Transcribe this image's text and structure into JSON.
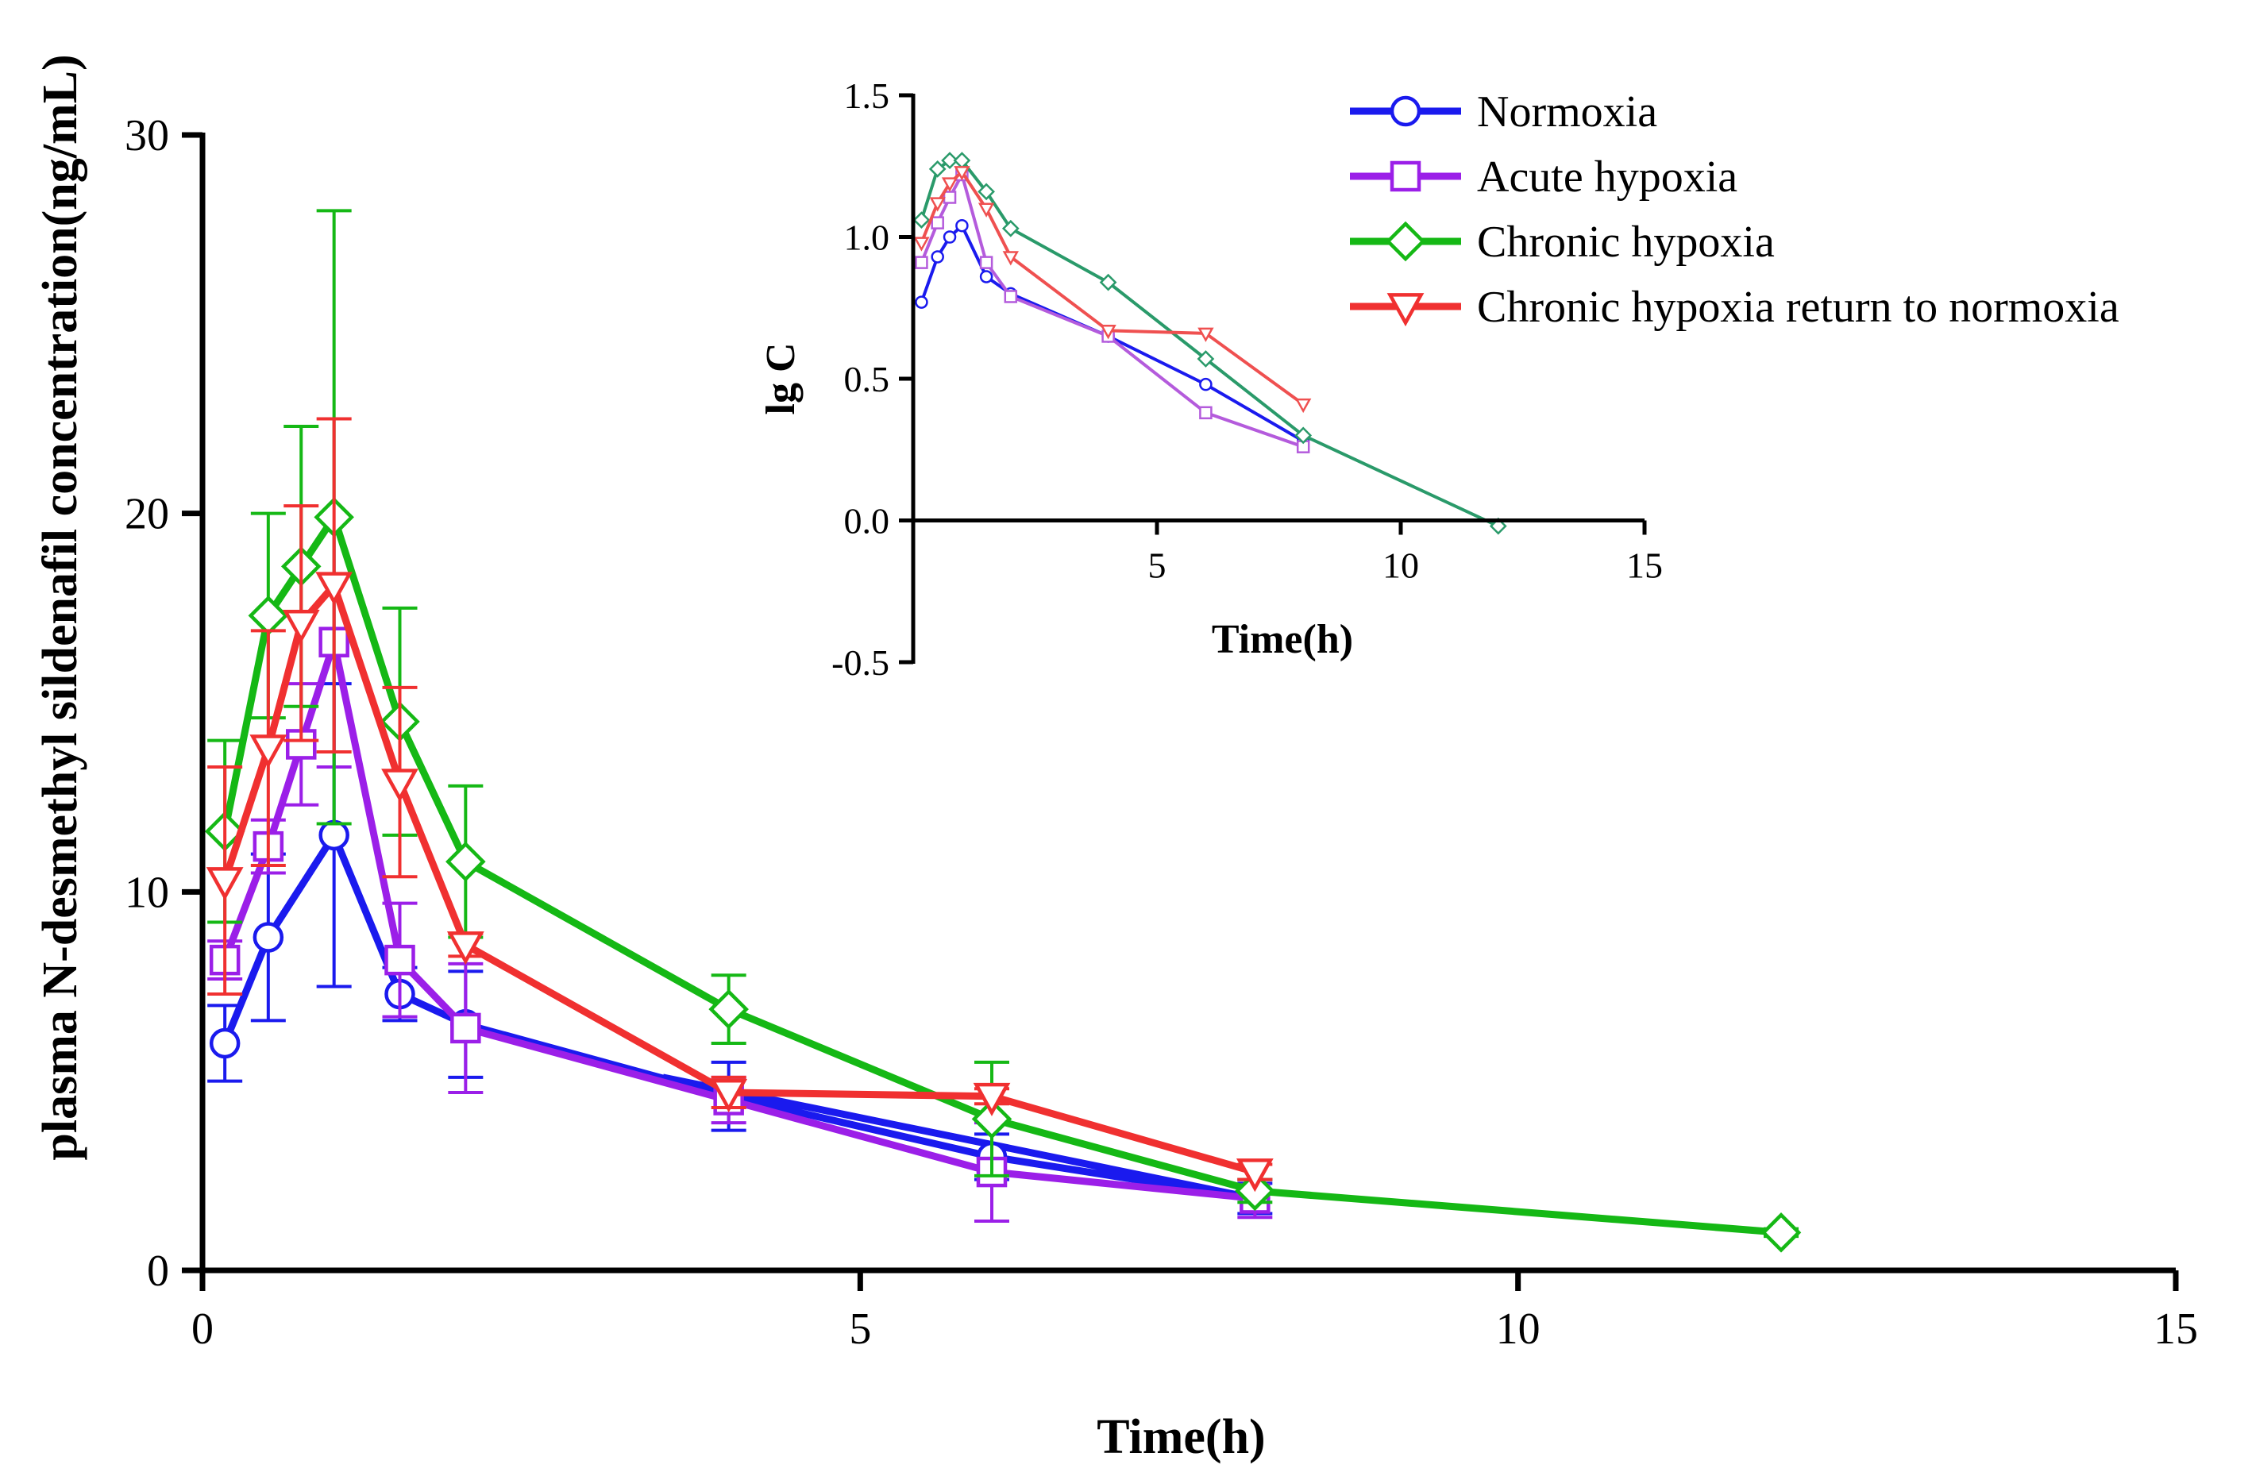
{
  "chart_data": [
    {
      "type": "line",
      "xlabel": "Time(h)",
      "ylabel": "plasma N-desmethyl sildenafil concentration(ng/mL)",
      "xlim": [
        0,
        15
      ],
      "ylim": [
        0,
        30
      ],
      "xticks": [
        0,
        5,
        10,
        15
      ],
      "yticks": [
        0,
        10,
        20,
        30
      ],
      "series": [
        {
          "name": "Normoxia",
          "color": "#1a1aee",
          "marker": "circle",
          "x": [
            0.17,
            0.5,
            1.0,
            1.5,
            2.0,
            4.0,
            6.0,
            8.0
          ],
          "y": [
            6.0,
            8.8,
            11.5,
            7.3,
            6.5,
            4.6,
            3.0,
            1.9
          ],
          "err": [
            1.0,
            2.2,
            4.0,
            0.7,
            1.4,
            0.9,
            0.6,
            0.4
          ],
          "line_to": [
            3.5,
            5.1
          ]
        },
        {
          "name": "Acute hypoxia",
          "color": "#9b1fe8",
          "marker": "square",
          "x": [
            0.17,
            0.5,
            0.75,
            1.0,
            1.5,
            2.0,
            4.0,
            6.0,
            8.0
          ],
          "y": [
            8.2,
            11.2,
            13.9,
            16.6,
            8.2,
            6.4,
            4.5,
            2.6,
            1.9
          ],
          "err": [
            0.5,
            0.7,
            1.6,
            3.3,
            1.5,
            1.7,
            0.6,
            1.3,
            0.5
          ]
        },
        {
          "name": "Chronic hypoxia",
          "color": "#15b815",
          "marker": "diamond",
          "x": [
            0.17,
            0.5,
            0.75,
            1.0,
            1.5,
            2.0,
            4.0,
            6.0,
            8.0,
            12.0
          ],
          "y": [
            11.6,
            17.3,
            18.6,
            19.9,
            14.5,
            10.8,
            6.9,
            4.0,
            2.1,
            1.0
          ],
          "err": [
            2.4,
            2.7,
            3.7,
            8.1,
            3.0,
            2.0,
            0.9,
            1.5,
            0.3,
            0.1
          ]
        },
        {
          "name": "Chronic hypoxia return to normoxia",
          "color": "#f03030",
          "marker": "triangle-down",
          "x": [
            0.17,
            0.5,
            0.75,
            1.0,
            1.5,
            2.0,
            4.0,
            6.0,
            8.0
          ],
          "y": [
            10.3,
            13.8,
            17.1,
            18.1,
            12.9,
            8.6,
            4.7,
            4.6,
            2.6
          ],
          "err": [
            3.0,
            3.1,
            3.1,
            4.4,
            2.5,
            0.3,
            0.4,
            0.2,
            0.2
          ]
        }
      ]
    },
    {
      "type": "line",
      "inset": true,
      "xlabel": "Time(h)",
      "ylabel": "lg C",
      "xlim": [
        0,
        15
      ],
      "ylim": [
        -0.5,
        1.5
      ],
      "xticks": [
        5,
        10,
        15
      ],
      "yticks": [
        -0.5,
        0.0,
        0.5,
        1.0,
        1.5
      ],
      "ytick_labels": [
        "-0.5",
        "0.0",
        "0.5",
        "1.0",
        "1.5"
      ],
      "series": [
        {
          "name": "Normoxia",
          "color": "#1a1aee",
          "marker": "circle",
          "x": [
            0.17,
            0.5,
            0.75,
            1.0,
            1.5,
            2.0,
            4.0,
            6.0,
            8.0
          ],
          "y": [
            0.77,
            0.93,
            1.0,
            1.04,
            0.86,
            0.8,
            0.65,
            0.48,
            0.28
          ]
        },
        {
          "name": "Acute hypoxia",
          "color": "#b45bdc",
          "marker": "square",
          "x": [
            0.17,
            0.5,
            0.75,
            1.0,
            1.5,
            2.0,
            4.0,
            6.0,
            8.0
          ],
          "y": [
            0.91,
            1.05,
            1.14,
            1.22,
            0.91,
            0.79,
            0.65,
            0.38,
            0.26
          ]
        },
        {
          "name": "Chronic hypoxia",
          "color": "#2a9a6a",
          "marker": "diamond",
          "x": [
            0.17,
            0.5,
            0.75,
            1.0,
            1.5,
            2.0,
            4.0,
            6.0,
            8.0,
            12.0
          ],
          "y": [
            1.06,
            1.24,
            1.27,
            1.27,
            1.16,
            1.03,
            0.84,
            0.57,
            0.3,
            -0.02
          ]
        },
        {
          "name": "Chronic hypoxia return to normoxia",
          "color": "#ef5050",
          "marker": "triangle-down",
          "x": [
            0.17,
            0.5,
            0.75,
            1.0,
            1.5,
            2.0,
            4.0,
            6.0,
            8.0
          ],
          "y": [
            0.98,
            1.12,
            1.19,
            1.23,
            1.1,
            0.93,
            0.67,
            0.66,
            0.41
          ]
        }
      ]
    }
  ],
  "legend": {
    "position": "top-right",
    "items": [
      {
        "label": "Normoxia",
        "color": "#1a1aee",
        "marker": "circle"
      },
      {
        "label": "Acute hypoxia",
        "color": "#9b1fe8",
        "marker": "square"
      },
      {
        "label": "Chronic hypoxia",
        "color": "#15b815",
        "marker": "diamond"
      },
      {
        "label": "Chronic hypoxia return to normoxia",
        "color": "#f03030",
        "marker": "triangle-down"
      }
    ]
  }
}
